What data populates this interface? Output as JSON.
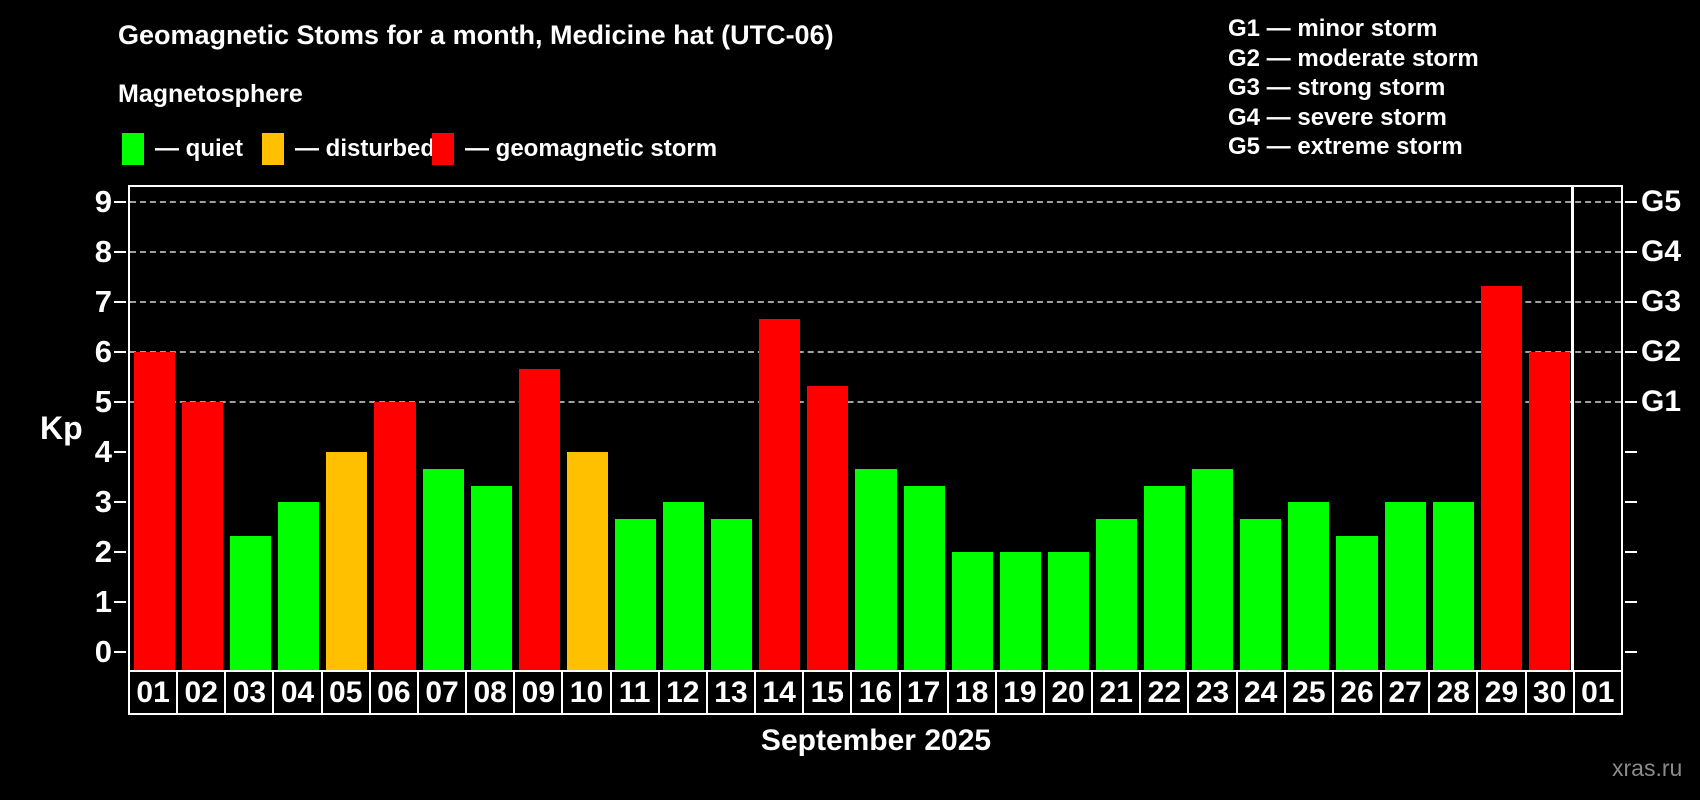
{
  "header": {
    "title": "Geomagnetic Stoms for a month, Medicine hat (UTC-06)",
    "subtitle": "Magnetosphere"
  },
  "legend": {
    "items": [
      {
        "key": "quiet",
        "label": "— quiet",
        "color": "#00ff00"
      },
      {
        "key": "disturbed",
        "label": "— disturbed",
        "color": "#ffc000"
      },
      {
        "key": "storm",
        "label": "— geomagnetic storm",
        "color": "#ff0000"
      }
    ]
  },
  "g_scale_legend": {
    "lines": [
      "G1 — minor storm",
      "G2 — moderate storm",
      "G3 — strong storm",
      "G4 — severe storm",
      "G5 — extreme storm"
    ]
  },
  "watermark": "xras.ru",
  "chart_data": {
    "type": "bar",
    "title": "Geomagnetic Stoms for a month, Medicine hat (UTC-06)",
    "subtitle": "Magnetosphere",
    "xlabel": "September 2025",
    "ylabel": "Kp",
    "ylim": [
      -0.3,
      9.3
    ],
    "grid": "horizontal dashed lines at Kp 5-9 only",
    "legend_position": "top-left",
    "categories": [
      "01",
      "02",
      "03",
      "04",
      "05",
      "06",
      "07",
      "08",
      "09",
      "10",
      "11",
      "12",
      "13",
      "14",
      "15",
      "16",
      "17",
      "18",
      "19",
      "20",
      "21",
      "22",
      "23",
      "24",
      "25",
      "26",
      "27",
      "28",
      "29",
      "30",
      "01"
    ],
    "values": [
      6.0,
      5.0,
      2.33,
      3.0,
      4.0,
      5.0,
      3.67,
      3.33,
      5.67,
      4.0,
      2.67,
      3.0,
      2.67,
      6.67,
      5.33,
      3.67,
      3.33,
      2.0,
      2.0,
      2.0,
      2.67,
      3.33,
      3.67,
      2.67,
      3.0,
      2.33,
      3.0,
      3.0,
      7.33,
      6.0,
      null
    ],
    "levels": [
      "storm",
      "storm",
      "quiet",
      "quiet",
      "disturbed",
      "storm",
      "quiet",
      "quiet",
      "storm",
      "disturbed",
      "quiet",
      "quiet",
      "quiet",
      "storm",
      "storm",
      "quiet",
      "quiet",
      "quiet",
      "quiet",
      "quiet",
      "quiet",
      "quiet",
      "quiet",
      "quiet",
      "quiet",
      "quiet",
      "quiet",
      "quiet",
      "storm",
      "storm",
      null
    ],
    "y_ticks": [
      0,
      1,
      2,
      3,
      4,
      5,
      6,
      7,
      8,
      9
    ],
    "gridlines_at": [
      5,
      6,
      7,
      8,
      9
    ],
    "right_axis_labels": [
      {
        "kp": 5,
        "label": "G1"
      },
      {
        "kp": 6,
        "label": "G2"
      },
      {
        "kp": 7,
        "label": "G3"
      },
      {
        "kp": 8,
        "label": "G4"
      },
      {
        "kp": 9,
        "label": "G5"
      }
    ],
    "month_boundary_index": 30,
    "xlabel_next_month_day": "01"
  }
}
